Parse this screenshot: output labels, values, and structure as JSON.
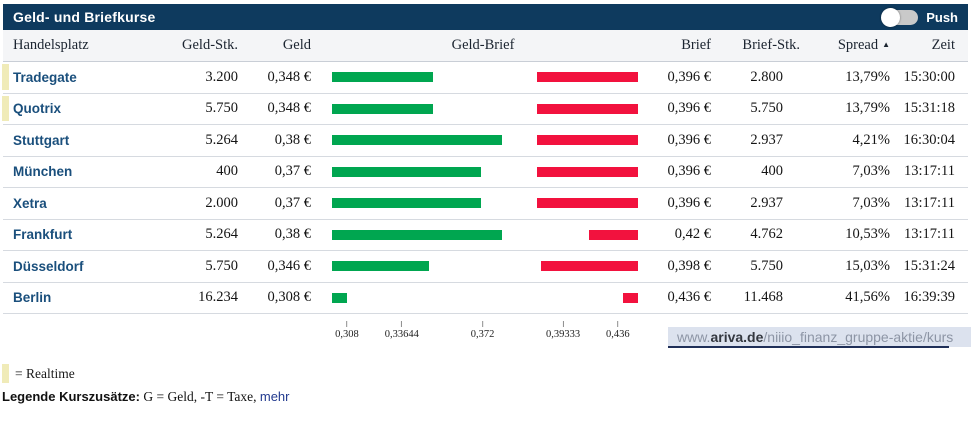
{
  "widget": {
    "title": "Geld- und Briefkurse",
    "push_label": "Push",
    "push_state": "off"
  },
  "table": {
    "columns": [
      "Handelsplatz",
      "Geld-Stk.",
      "Geld",
      "Geld-Brief",
      "Brief",
      "Brief-Stk.",
      "Spread",
      "Zeit"
    ],
    "sort": {
      "column": "Spread",
      "direction": "asc",
      "icon": "▲"
    },
    "rows": [
      {
        "handelsplatz": "Tradegate",
        "realtime": true,
        "geld_stk": "3.200",
        "geld": "0,348 €",
        "geld_val": 0.348,
        "brief": "0,396 €",
        "brief_val": 0.396,
        "brief_stk": "2.800",
        "spread": "13,79%",
        "zeit": "15:30:00"
      },
      {
        "handelsplatz": "Quotrix",
        "realtime": true,
        "geld_stk": "5.750",
        "geld": "0,348 €",
        "geld_val": 0.348,
        "brief": "0,396 €",
        "brief_val": 0.396,
        "brief_stk": "5.750",
        "spread": "13,79%",
        "zeit": "15:31:18"
      },
      {
        "handelsplatz": "Stuttgart",
        "realtime": false,
        "geld_stk": "5.264",
        "geld": "0,38 €",
        "geld_val": 0.38,
        "brief": "0,396 €",
        "brief_val": 0.396,
        "brief_stk": "2.937",
        "spread": "4,21%",
        "zeit": "16:30:04"
      },
      {
        "handelsplatz": "München",
        "realtime": false,
        "geld_stk": "400",
        "geld": "0,37 €",
        "geld_val": 0.37,
        "brief": "0,396 €",
        "brief_val": 0.396,
        "brief_stk": "400",
        "spread": "7,03%",
        "zeit": "13:17:11"
      },
      {
        "handelsplatz": "Xetra",
        "realtime": false,
        "geld_stk": "2.000",
        "geld": "0,37 €",
        "geld_val": 0.37,
        "brief": "0,396 €",
        "brief_val": 0.396,
        "brief_stk": "2.937",
        "spread": "7,03%",
        "zeit": "13:17:11"
      },
      {
        "handelsplatz": "Frankfurt",
        "realtime": false,
        "geld_stk": "5.264",
        "geld": "0,38 €",
        "geld_val": 0.38,
        "brief": "0,42 €",
        "brief_val": 0.42,
        "brief_stk": "4.762",
        "spread": "10,53%",
        "zeit": "13:17:11"
      },
      {
        "handelsplatz": "Düsseldorf",
        "realtime": false,
        "geld_stk": "5.750",
        "geld": "0,346 €",
        "geld_val": 0.346,
        "brief": "0,398 €",
        "brief_val": 0.398,
        "brief_stk": "5.750",
        "spread": "15,03%",
        "zeit": "15:31:24"
      },
      {
        "handelsplatz": "Berlin",
        "realtime": false,
        "geld_stk": "16.234",
        "geld": "0,308 €",
        "geld_val": 0.308,
        "brief": "0,436 €",
        "brief_val": 0.436,
        "brief_stk": "11.468",
        "spread": "41,56%",
        "zeit": "16:39:39"
      }
    ]
  },
  "chart_data": {
    "type": "bar",
    "description": "Geld-Brief range bars: green bar spans from scale start to Geld (bid) price, red bar spans from Brief (ask) price to scale end",
    "min": 0.308,
    "max": 0.436,
    "pad_pct": 4.9,
    "green_color": "#00a650",
    "red_color": "#f2123e",
    "axis_ticks": [
      {
        "label": "0,308",
        "pos_pct": 4.9
      },
      {
        "label": "0,33644",
        "pos_pct": 22.8
      },
      {
        "label": "0,372",
        "pos_pct": 49.2
      },
      {
        "label": "0,39333",
        "pos_pct": 75.5
      },
      {
        "label": "0,436",
        "pos_pct": 93.4
      }
    ]
  },
  "statusbar_url": {
    "prefix": "www.",
    "domain": "ariva.de",
    "path": "/niiio_finanz_gruppe-aktie/kurs"
  },
  "legend": {
    "realtime": "= Realtime",
    "kurszusaetze_label": "Legende Kurszusätze:",
    "kurszusaetze_text": " G = Geld, -T = Taxe, ",
    "mehr_link": "mehr"
  }
}
